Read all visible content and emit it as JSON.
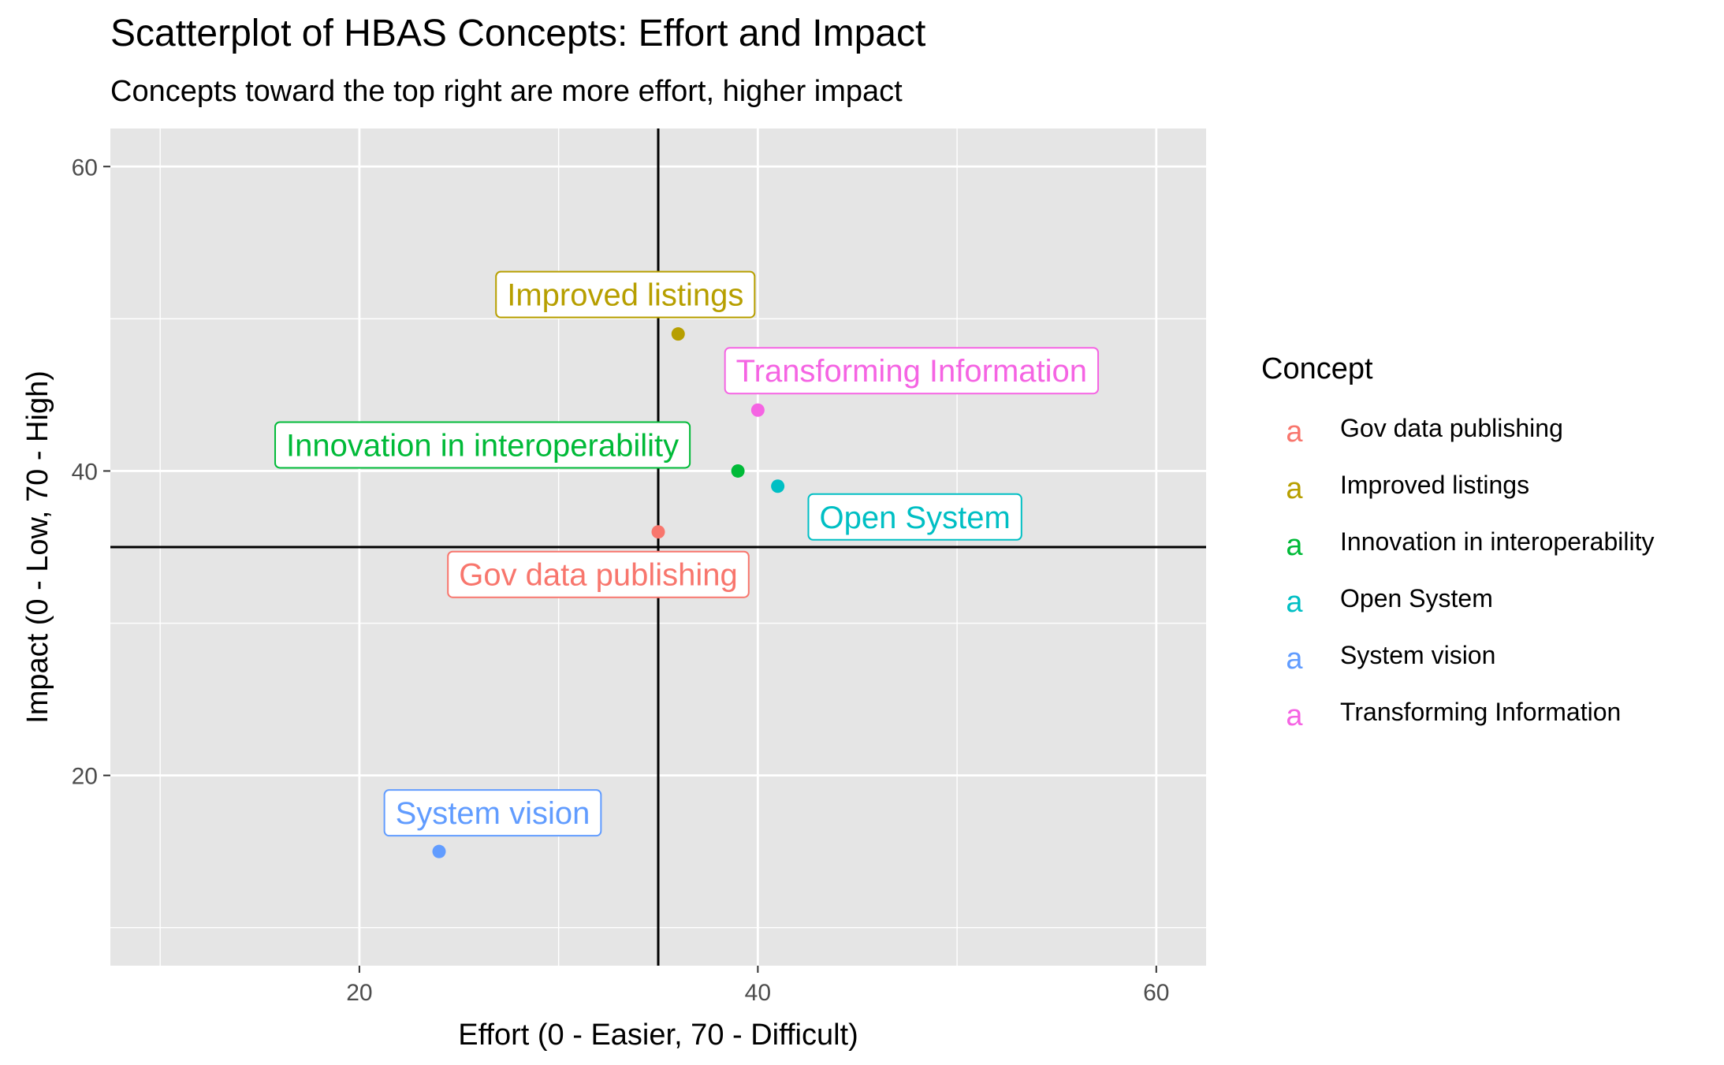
{
  "chart_data": {
    "type": "scatter",
    "title": "Scatterplot of HBAS Concepts: Effort and Impact",
    "subtitle": "Concepts toward the top right are more effort, higher impact",
    "xlabel": "Effort (0 - Easier, 70 - Difficult)",
    "ylabel": "Impact (0 - Low, 70 - High)",
    "xlim": [
      7.5,
      62.5
    ],
    "ylim": [
      7.5,
      62.5
    ],
    "x_ticks": [
      20,
      40,
      60
    ],
    "x_tick_labels": [
      "20",
      "40",
      "60"
    ],
    "y_ticks": [
      20,
      40,
      60
    ],
    "y_tick_labels": [
      "20",
      "40",
      "60"
    ],
    "grid": true,
    "reference_lines": {
      "x": 35,
      "y": 35
    },
    "legend": {
      "title": "Concept",
      "position": "right",
      "key_glyph": "a"
    },
    "series": [
      {
        "name": "Gov data publishing",
        "color": "#F8766D",
        "x": 35,
        "y": 36
      },
      {
        "name": "Improved listings",
        "color": "#B79F00",
        "x": 36,
        "y": 49
      },
      {
        "name": "Innovation in interoperability",
        "color": "#00BA38",
        "x": 39,
        "y": 40
      },
      {
        "name": "Open System",
        "color": "#00BFC4",
        "x": 41,
        "y": 39
      },
      {
        "name": "System vision",
        "color": "#619CFF",
        "x": 24,
        "y": 15
      },
      {
        "name": "Transforming Information",
        "color": "#F564E3",
        "x": 40,
        "y": 44
      }
    ]
  }
}
